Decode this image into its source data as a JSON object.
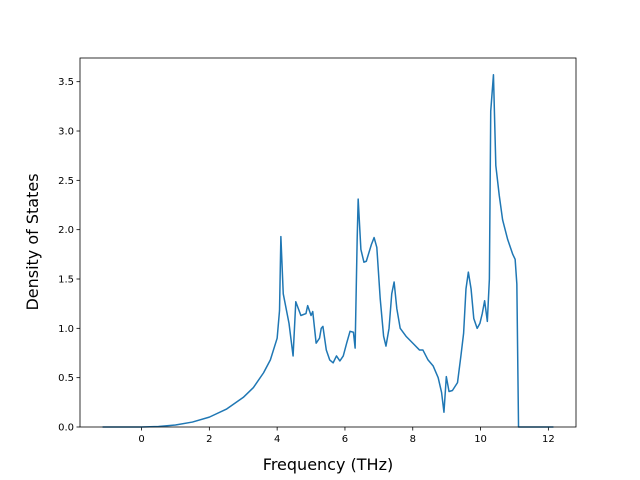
{
  "chart_data": {
    "type": "line",
    "xlabel": "Frequency (THz)",
    "ylabel": "Density of States",
    "x": [
      -1.15,
      0,
      0.5,
      1,
      1.5,
      2,
      2.5,
      3,
      3.3,
      3.6,
      3.8,
      4.0,
      4.07,
      4.11,
      4.18,
      4.35,
      4.47,
      4.55,
      4.7,
      4.85,
      4.9,
      5.0,
      5.05,
      5.15,
      5.25,
      5.3,
      5.35,
      5.45,
      5.55,
      5.65,
      5.75,
      5.85,
      5.95,
      6.05,
      6.15,
      6.25,
      6.3,
      6.36,
      6.39,
      6.47,
      6.56,
      6.63,
      6.78,
      6.86,
      6.94,
      7.04,
      7.14,
      7.21,
      7.3,
      7.38,
      7.45,
      7.53,
      7.63,
      7.8,
      8.0,
      8.2,
      8.3,
      8.45,
      8.6,
      8.75,
      8.85,
      8.92,
      8.99,
      9.07,
      9.17,
      9.32,
      9.42,
      9.5,
      9.57,
      9.64,
      9.72,
      9.8,
      9.9,
      9.98,
      10.05,
      10.12,
      10.2,
      10.26,
      10.3,
      10.38,
      10.45,
      10.55,
      10.65,
      10.8,
      10.95,
      11.02,
      11.07,
      11.12,
      12.15
    ],
    "values": [
      0,
      0,
      0.005,
      0.02,
      0.05,
      0.1,
      0.18,
      0.3,
      0.4,
      0.55,
      0.68,
      0.9,
      1.18,
      1.93,
      1.35,
      1.05,
      0.72,
      1.27,
      1.13,
      1.15,
      1.23,
      1.13,
      1.17,
      0.85,
      0.9,
      1.0,
      1.02,
      0.78,
      0.68,
      0.65,
      0.72,
      0.67,
      0.72,
      0.85,
      0.97,
      0.96,
      0.8,
      1.9,
      2.31,
      1.8,
      1.67,
      1.68,
      1.85,
      1.92,
      1.82,
      1.3,
      0.92,
      0.82,
      1.0,
      1.35,
      1.47,
      1.2,
      1.0,
      0.92,
      0.85,
      0.78,
      0.78,
      0.68,
      0.62,
      0.5,
      0.35,
      0.15,
      0.51,
      0.36,
      0.37,
      0.45,
      0.72,
      0.95,
      1.4,
      1.57,
      1.4,
      1.1,
      1.0,
      1.05,
      1.15,
      1.28,
      1.07,
      1.5,
      3.2,
      3.57,
      2.65,
      2.35,
      2.1,
      1.9,
      1.75,
      1.7,
      1.45,
      0,
      0
    ],
    "color": "#1f77b4",
    "xlim": [
      -1.815,
      12.815
    ],
    "xticks": [
      0,
      2,
      4,
      6,
      8,
      10,
      12
    ],
    "ylim": [
      0,
      3.74
    ],
    "yticks": [
      {
        "value": 0,
        "label": "0.0"
      },
      {
        "value": 0.5,
        "label": "0.5"
      },
      {
        "value": 1,
        "label": "1.0"
      },
      {
        "value": 1.5,
        "label": "1.5"
      },
      {
        "value": 2,
        "label": "2.0"
      },
      {
        "value": 2.5,
        "label": "2.5"
      },
      {
        "value": 3,
        "label": "3.0"
      },
      {
        "value": 3.5,
        "label": "3.5"
      }
    ]
  }
}
